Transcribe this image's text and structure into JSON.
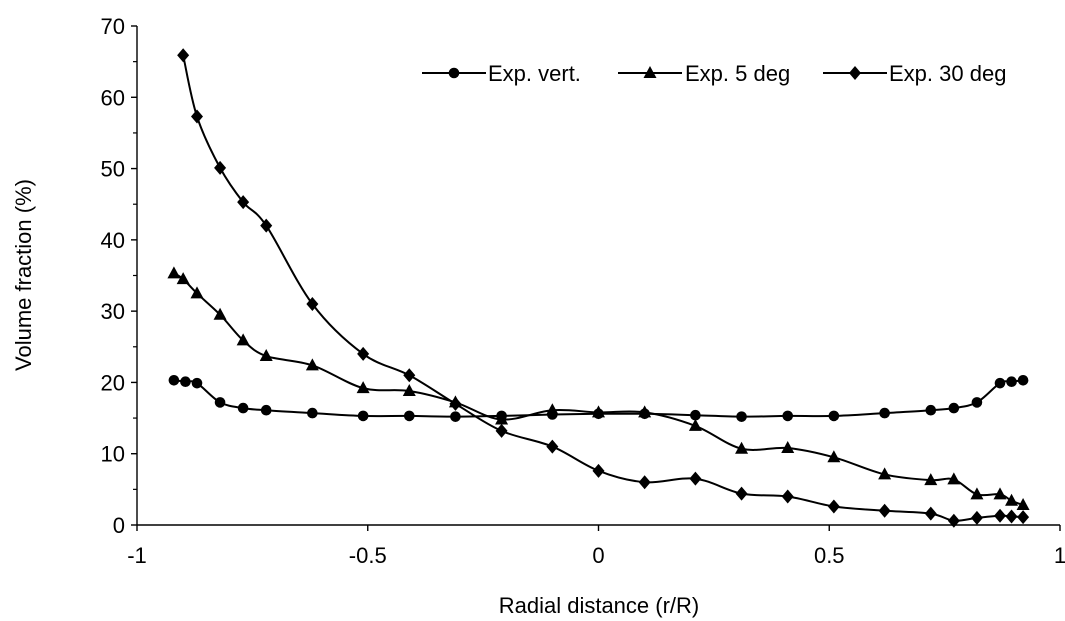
{
  "chart_data": {
    "type": "line",
    "xlabel": "Radial distance (r/R)",
    "ylabel": "Volume fraction (%)",
    "xlim": [
      -1,
      1
    ],
    "ylim": [
      0,
      70
    ],
    "x_ticks": [
      -1,
      -0.5,
      0,
      0.5,
      1
    ],
    "x_tick_labels": [
      "-1",
      "-0.5",
      "0",
      "0.5",
      "1"
    ],
    "y_ticks": [
      0,
      10,
      20,
      30,
      40,
      50,
      60,
      70
    ],
    "y_tick_labels": [
      "0",
      "10",
      "20",
      "30",
      "40",
      "50",
      "60",
      "70"
    ],
    "grid": false,
    "legend_position": "top-right",
    "line_color": "#000000",
    "series": [
      {
        "name": "Exp. vert.",
        "marker": "circle",
        "points": [
          [
            -0.92,
            20.3
          ],
          [
            -0.895,
            20.1
          ],
          [
            -0.87,
            19.9
          ],
          [
            -0.82,
            17.2
          ],
          [
            -0.77,
            16.4
          ],
          [
            -0.72,
            16.1
          ],
          [
            -0.62,
            15.7
          ],
          [
            -0.51,
            15.3
          ],
          [
            -0.41,
            15.3
          ],
          [
            -0.31,
            15.2
          ],
          [
            -0.21,
            15.3
          ],
          [
            -0.1,
            15.5
          ],
          [
            0.0,
            15.6
          ],
          [
            0.1,
            15.6
          ],
          [
            0.21,
            15.4
          ],
          [
            0.31,
            15.2
          ],
          [
            0.41,
            15.3
          ],
          [
            0.51,
            15.3
          ],
          [
            0.62,
            15.7
          ],
          [
            0.72,
            16.1
          ],
          [
            0.77,
            16.4
          ],
          [
            0.82,
            17.2
          ],
          [
            0.87,
            19.9
          ],
          [
            0.895,
            20.1
          ],
          [
            0.92,
            20.3
          ]
        ]
      },
      {
        "name": "Exp. 5 deg",
        "marker": "triangle",
        "points": [
          [
            -0.92,
            35.3
          ],
          [
            -0.9,
            34.5
          ],
          [
            -0.87,
            32.5
          ],
          [
            -0.82,
            29.5
          ],
          [
            -0.77,
            25.9
          ],
          [
            -0.72,
            23.7
          ],
          [
            -0.62,
            22.4
          ],
          [
            -0.51,
            19.2
          ],
          [
            -0.41,
            18.8
          ],
          [
            -0.31,
            17.2
          ],
          [
            -0.21,
            14.8
          ],
          [
            -0.1,
            16.1
          ],
          [
            0.0,
            15.8
          ],
          [
            0.1,
            15.8
          ],
          [
            0.21,
            13.9
          ],
          [
            0.31,
            10.7
          ],
          [
            0.41,
            10.8
          ],
          [
            0.51,
            9.5
          ],
          [
            0.62,
            7.1
          ],
          [
            0.72,
            6.3
          ],
          [
            0.77,
            6.4
          ],
          [
            0.82,
            4.3
          ],
          [
            0.87,
            4.3
          ],
          [
            0.895,
            3.4
          ],
          [
            0.92,
            2.8
          ]
        ]
      },
      {
        "name": "Exp. 30 deg",
        "marker": "diamond",
        "points": [
          [
            -0.9,
            65.9
          ],
          [
            -0.87,
            57.3
          ],
          [
            -0.82,
            50.1
          ],
          [
            -0.77,
            45.3
          ],
          [
            -0.72,
            42.0
          ],
          [
            -0.62,
            31.0
          ],
          [
            -0.51,
            24.0
          ],
          [
            -0.41,
            21.0
          ],
          [
            -0.31,
            17.0
          ],
          [
            -0.21,
            13.2
          ],
          [
            -0.1,
            11.0
          ],
          [
            0.0,
            7.6
          ],
          [
            0.1,
            6.0
          ],
          [
            0.21,
            6.5
          ],
          [
            0.31,
            4.4
          ],
          [
            0.41,
            4.0
          ],
          [
            0.51,
            2.6
          ],
          [
            0.62,
            2.0
          ],
          [
            0.72,
            1.6
          ],
          [
            0.77,
            0.6
          ],
          [
            0.82,
            1.0
          ],
          [
            0.87,
            1.3
          ],
          [
            0.895,
            1.2
          ],
          [
            0.92,
            1.1
          ]
        ]
      }
    ]
  }
}
